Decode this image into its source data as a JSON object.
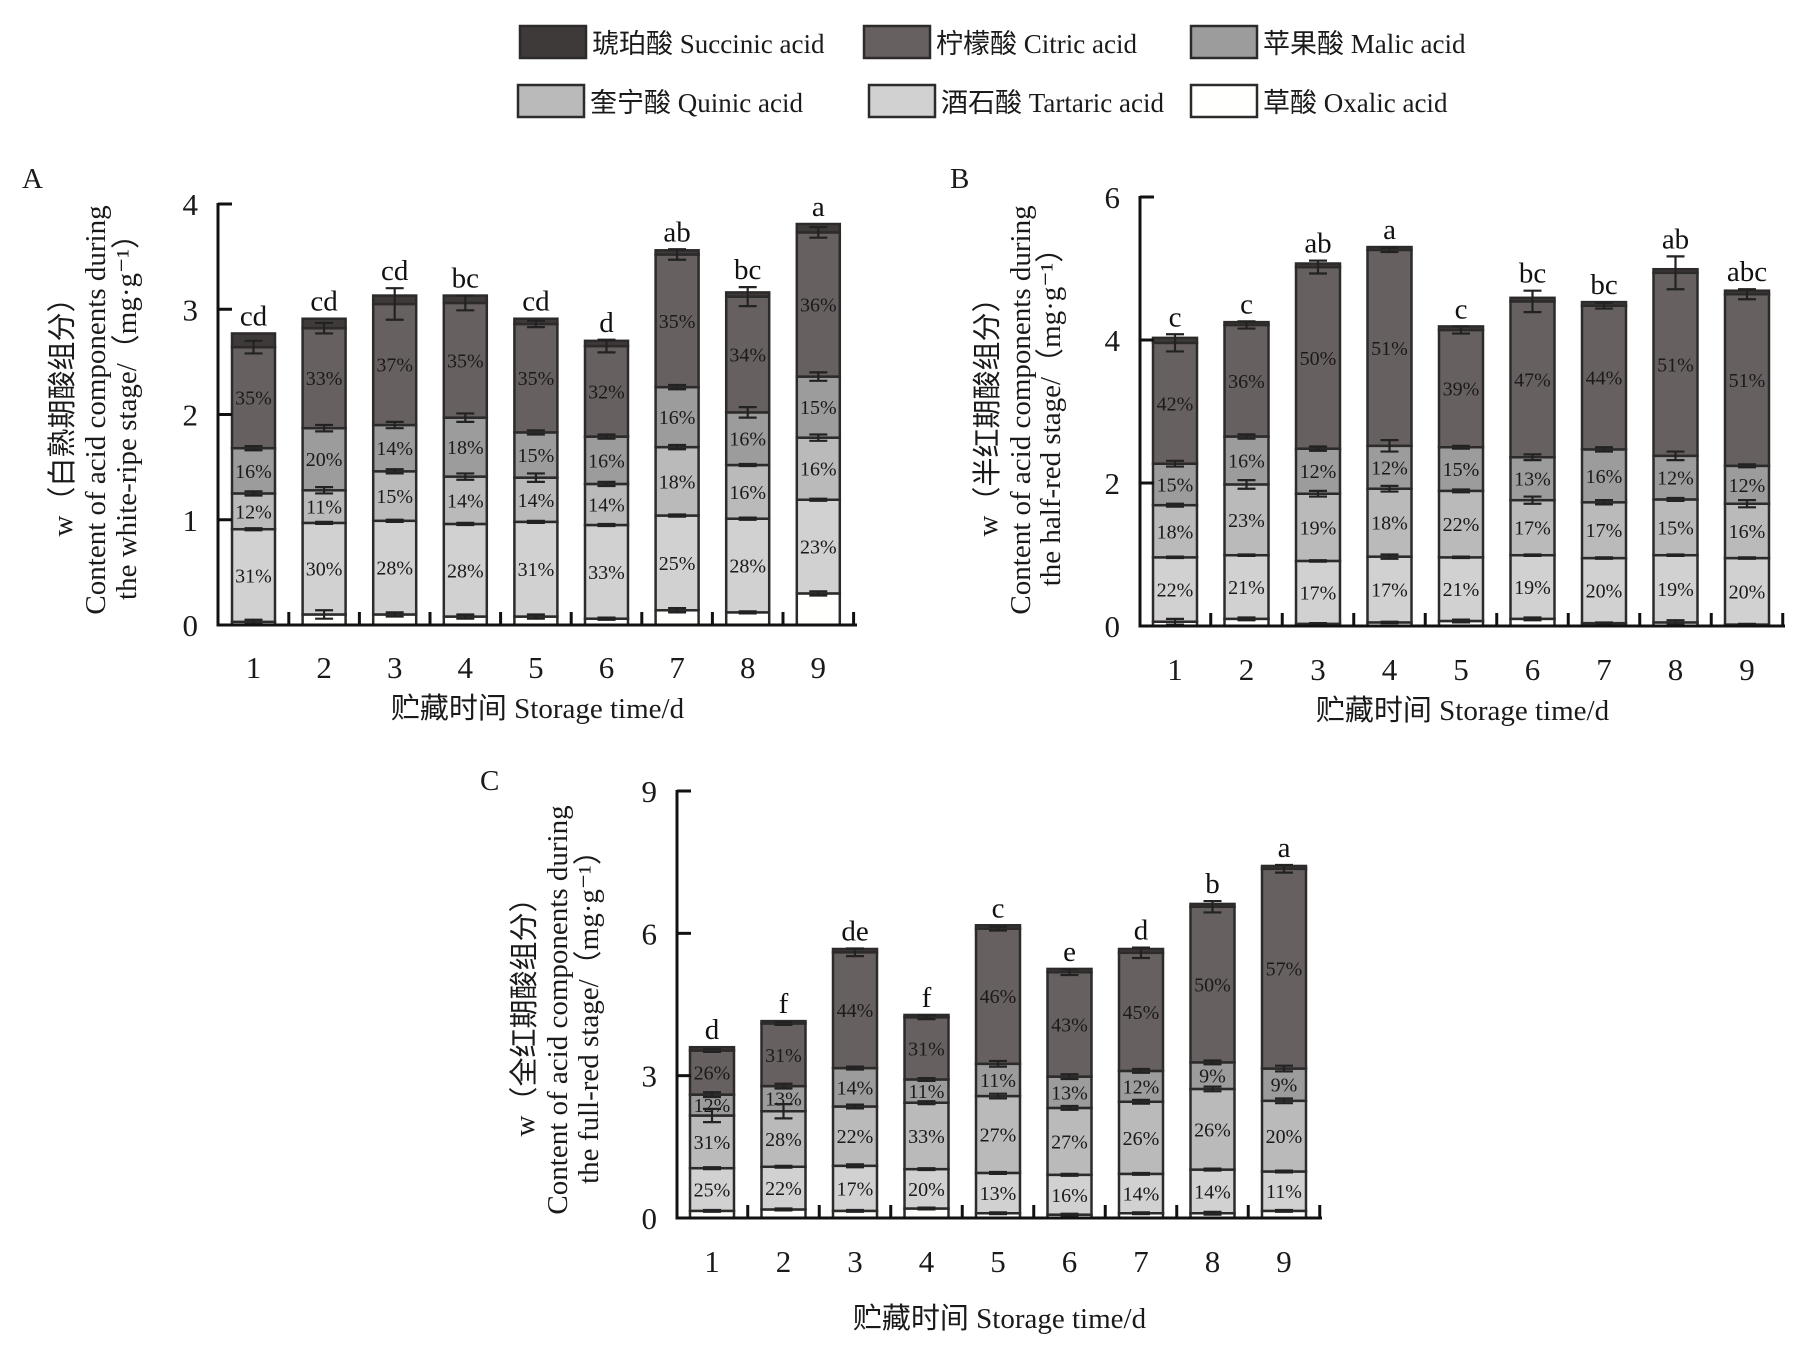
{
  "legend": {
    "items": [
      {
        "key": "succinic",
        "label": "琥珀酸 Succinic acid",
        "color": "#3f3a3a"
      },
      {
        "key": "citric",
        "label": "柠檬酸 Citric acid",
        "color": "#676060"
      },
      {
        "key": "malic",
        "label": "苹果酸 Malic acid",
        "color": "#9d9c9c"
      },
      {
        "key": "quinic",
        "label": "奎宁酸 Quinic acid",
        "color": "#bbbaba"
      },
      {
        "key": "tartaric",
        "label": "酒石酸 Tartaric acid",
        "color": "#d2d1d2"
      },
      {
        "key": "oxalic",
        "label": "草酸 Oxalic acid",
        "color": "#fffffd"
      }
    ]
  },
  "chart_data": [
    {
      "panel": "A",
      "type": "bar",
      "stacked": true,
      "title": "",
      "ylabel_lines": [
        "w（白熟期酸组分）",
        "Content of acid components during",
        "the white-ripe stage/（mg·g⁻¹）"
      ],
      "xlabel": "贮藏时间 Storage time/d",
      "ylim": [
        0,
        4
      ],
      "yticks": [
        0,
        1,
        2,
        3,
        4
      ],
      "categories": [
        "1",
        "2",
        "3",
        "4",
        "5",
        "6",
        "7",
        "8",
        "9"
      ],
      "series_order": [
        "oxalic",
        "tartaric",
        "quinic",
        "malic",
        "citric",
        "succinic"
      ],
      "series": [
        {
          "name": "oxalic",
          "values": [
            0.03,
            0.1,
            0.1,
            0.08,
            0.08,
            0.06,
            0.14,
            0.12,
            0.3
          ]
        },
        {
          "name": "tartaric",
          "values": [
            0.88,
            0.87,
            0.89,
            0.88,
            0.9,
            0.89,
            0.9,
            0.89,
            0.89
          ]
        },
        {
          "name": "quinic",
          "values": [
            0.34,
            0.31,
            0.47,
            0.45,
            0.42,
            0.39,
            0.65,
            0.51,
            0.59
          ]
        },
        {
          "name": "malic",
          "values": [
            0.43,
            0.59,
            0.44,
            0.56,
            0.43,
            0.45,
            0.57,
            0.5,
            0.58
          ]
        },
        {
          "name": "citric",
          "values": [
            0.96,
            0.95,
            1.15,
            1.09,
            1.03,
            0.86,
            1.26,
            1.1,
            1.37
          ]
        },
        {
          "name": "succinic",
          "values": [
            0.13,
            0.09,
            0.08,
            0.07,
            0.05,
            0.05,
            0.04,
            0.04,
            0.08
          ]
        }
      ],
      "percent_labels": {
        "tartaric": [
          "31%",
          "30%",
          "28%",
          "28%",
          "31%",
          "33%",
          "25%",
          "28%",
          "23%"
        ],
        "quinic": [
          "12%",
          "11%",
          "15%",
          "14%",
          "14%",
          "14%",
          "18%",
          "16%",
          "16%"
        ],
        "malic": [
          "16%",
          "20%",
          "14%",
          "18%",
          "15%",
          "16%",
          "16%",
          "16%",
          "15%"
        ],
        "citric": [
          "35%",
          "33%",
          "37%",
          "35%",
          "35%",
          "32%",
          "35%",
          "34%",
          "36%"
        ]
      },
      "significance": [
        "cd",
        "cd",
        "cd",
        "bc",
        "cd",
        "d",
        "ab",
        "bc",
        "a"
      ],
      "error_bars": {
        "citric": [
          0.06,
          0.05,
          0.15,
          0.07,
          0.03,
          0.06,
          0.05,
          0.09,
          0.05
        ],
        "malic": [
          0.02,
          0.03,
          0.03,
          0.04,
          0.02,
          0.02,
          0.02,
          0.05,
          0.04
        ],
        "quinic": [
          0.02,
          0.03,
          0.02,
          0.03,
          0.04,
          0.02,
          0.02,
          0.01,
          0.03
        ],
        "tartaric": [
          0.01,
          0.01,
          0.01,
          0.01,
          0.01,
          0.01,
          0.01,
          0.01,
          0.01
        ],
        "oxalic": [
          0.02,
          0.04,
          0.02,
          0.02,
          0.02,
          0.01,
          0.02,
          0.01,
          0.02
        ]
      }
    },
    {
      "panel": "B",
      "type": "bar",
      "stacked": true,
      "title": "",
      "ylabel_lines": [
        "w（半红期酸组分）",
        "Content of acid components during",
        "the half-red stage/（mg·g⁻¹）"
      ],
      "xlabel": "贮藏时间 Storage time/d",
      "ylim": [
        0,
        6
      ],
      "yticks": [
        0,
        2,
        4,
        6
      ],
      "categories": [
        "1",
        "2",
        "3",
        "4",
        "5",
        "6",
        "7",
        "8",
        "9"
      ],
      "series_order": [
        "oxalic",
        "tartaric",
        "quinic",
        "malic",
        "citric",
        "succinic"
      ],
      "series": [
        {
          "name": "oxalic",
          "values": [
            0.06,
            0.1,
            0.03,
            0.05,
            0.07,
            0.1,
            0.04,
            0.05,
            0.02
          ]
        },
        {
          "name": "tartaric",
          "values": [
            0.9,
            0.89,
            0.88,
            0.92,
            0.89,
            0.89,
            0.91,
            0.94,
            0.93
          ]
        },
        {
          "name": "quinic",
          "values": [
            0.73,
            0.99,
            0.94,
            0.95,
            0.93,
            0.77,
            0.78,
            0.78,
            0.76
          ]
        },
        {
          "name": "malic",
          "values": [
            0.58,
            0.67,
            0.63,
            0.6,
            0.61,
            0.6,
            0.74,
            0.61,
            0.53
          ]
        },
        {
          "name": "citric",
          "values": [
            1.69,
            1.56,
            2.54,
            2.74,
            1.64,
            2.18,
            2.01,
            2.56,
            2.4
          ]
        },
        {
          "name": "succinic",
          "values": [
            0.07,
            0.04,
            0.05,
            0.04,
            0.05,
            0.05,
            0.05,
            0.05,
            0.05
          ]
        }
      ],
      "percent_labels": {
        "tartaric": [
          "22%",
          "21%",
          "17%",
          "17%",
          "21%",
          "19%",
          "20%",
          "19%",
          "20%"
        ],
        "quinic": [
          "18%",
          "23%",
          "19%",
          "18%",
          "22%",
          "17%",
          "17%",
          "15%",
          "16%"
        ],
        "malic": [
          "15%",
          "16%",
          "12%",
          "12%",
          "15%",
          "13%",
          "16%",
          "12%",
          "12%"
        ],
        "citric": [
          "42%",
          "36%",
          "50%",
          "51%",
          "39%",
          "47%",
          "44%",
          "51%",
          "51%"
        ]
      },
      "significance": [
        "c",
        "c",
        "ab",
        "a",
        "c",
        "bc",
        "bc",
        "ab",
        "abc"
      ],
      "error_bars": {
        "citric": [
          0.12,
          0.05,
          0.09,
          0.03,
          0.05,
          0.15,
          0.04,
          0.23,
          0.07
        ],
        "malic": [
          0.04,
          0.03,
          0.03,
          0.08,
          0.02,
          0.04,
          0.03,
          0.06,
          0.02
        ],
        "quinic": [
          0.02,
          0.06,
          0.04,
          0.04,
          0.02,
          0.05,
          0.03,
          0.02,
          0.05
        ],
        "tartaric": [
          0.01,
          0.01,
          0.01,
          0.03,
          0.01,
          0.01,
          0.01,
          0.01,
          0.01
        ],
        "oxalic": [
          0.04,
          0.02,
          0.01,
          0.01,
          0.02,
          0.02,
          0.01,
          0.03,
          0.01
        ]
      }
    },
    {
      "panel": "C",
      "type": "bar",
      "stacked": true,
      "title": "",
      "ylabel_lines": [
        "w（全红期酸组分）",
        "Content of acid components during",
        "the full-red stage/（mg·g⁻¹）"
      ],
      "xlabel": "贮藏时间 Storage time/d",
      "ylim": [
        0,
        9
      ],
      "yticks": [
        0,
        3,
        6,
        9
      ],
      "categories": [
        "1",
        "2",
        "3",
        "4",
        "5",
        "6",
        "7",
        "8",
        "9"
      ],
      "series_order": [
        "oxalic",
        "tartaric",
        "quinic",
        "malic",
        "citric",
        "succinic"
      ],
      "series": [
        {
          "name": "oxalic",
          "values": [
            0.15,
            0.18,
            0.15,
            0.2,
            0.1,
            0.07,
            0.1,
            0.1,
            0.15
          ]
        },
        {
          "name": "tartaric",
          "values": [
            0.9,
            0.9,
            0.95,
            0.83,
            0.85,
            0.84,
            0.83,
            0.92,
            0.83
          ]
        },
        {
          "name": "quinic",
          "values": [
            1.11,
            1.17,
            1.25,
            1.4,
            1.62,
            1.41,
            1.52,
            1.7,
            1.49
          ]
        },
        {
          "name": "malic",
          "values": [
            0.44,
            0.53,
            0.81,
            0.49,
            0.68,
            0.66,
            0.65,
            0.56,
            0.68
          ]
        },
        {
          "name": "citric",
          "values": [
            0.93,
            1.32,
            2.44,
            1.31,
            2.85,
            2.2,
            2.49,
            3.28,
            4.21
          ]
        },
        {
          "name": "succinic",
          "values": [
            0.07,
            0.05,
            0.07,
            0.05,
            0.07,
            0.07,
            0.08,
            0.06,
            0.06
          ]
        }
      ],
      "percent_labels": {
        "tartaric": [
          "25%",
          "22%",
          "17%",
          "20%",
          "13%",
          "16%",
          "14%",
          "14%",
          "11%"
        ],
        "quinic": [
          "31%",
          "28%",
          "22%",
          "33%",
          "27%",
          "27%",
          "26%",
          "26%",
          "20%"
        ],
        "malic": [
          "12%",
          "13%",
          "14%",
          "11%",
          "11%",
          "13%",
          "12%",
          "9%",
          "9%"
        ],
        "citric": [
          "26%",
          "31%",
          "44%",
          "31%",
          "46%",
          "43%",
          "45%",
          "50%",
          "57%"
        ]
      },
      "significance": [
        "d",
        "f",
        "de",
        "f",
        "c",
        "e",
        "d",
        "b",
        "a"
      ],
      "error_bars": {
        "citric": [
          0.03,
          0.03,
          0.08,
          0.04,
          0.04,
          0.06,
          0.11,
          0.12,
          0.08
        ],
        "malic": [
          0.05,
          0.05,
          0.03,
          0.03,
          0.06,
          0.05,
          0.04,
          0.04,
          0.06
        ],
        "quinic": [
          0.14,
          0.15,
          0.04,
          0.03,
          0.05,
          0.04,
          0.04,
          0.05,
          0.05
        ],
        "tartaric": [
          0.02,
          0.02,
          0.03,
          0.02,
          0.02,
          0.02,
          0.02,
          0.02,
          0.02
        ],
        "oxalic": [
          0.02,
          0.02,
          0.02,
          0.02,
          0.02,
          0.02,
          0.02,
          0.03,
          0.02
        ]
      }
    }
  ]
}
